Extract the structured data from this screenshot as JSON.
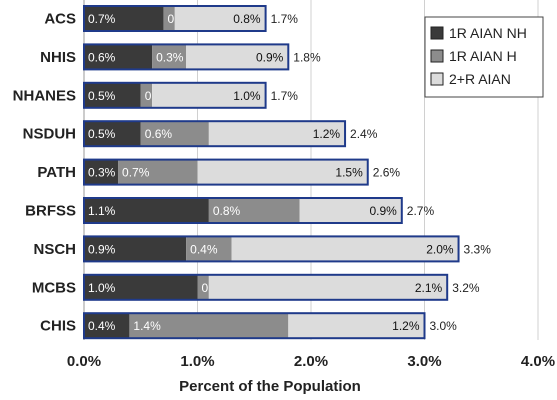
{
  "chart_data": {
    "type": "bar",
    "orientation": "horizontal",
    "stacked": true,
    "title": "",
    "xlabel": "Percent of the Population",
    "ylabel": "",
    "xlim": [
      0,
      4
    ],
    "xticks": [
      "0.0%",
      "1.0%",
      "2.0%",
      "3.0%",
      "4.0%"
    ],
    "grid": true,
    "legend_position": "top-right",
    "categories": [
      "ACS",
      "NHIS",
      "NHANES",
      "NSDUH",
      "PATH",
      "BRFSS",
      "NSCH",
      "MCBS",
      "CHIS"
    ],
    "series": [
      {
        "name": "1R AIAN NH",
        "color": "#3a3a3a",
        "text_color": "#ffffff",
        "values": [
          0.7,
          0.6,
          0.5,
          0.5,
          0.3,
          1.1,
          0.9,
          1.0,
          0.4
        ],
        "labels": [
          "0.7%",
          "0.6%",
          "0.5%",
          "0.5%",
          "0.3%",
          "1.1%",
          "0.9%",
          "1.0%",
          "0.4%"
        ]
      },
      {
        "name": "1R AIAN H",
        "color": "#8c8c8c",
        "text_color": "#ffffff",
        "values": [
          0.1,
          0.3,
          0.1,
          0.6,
          0.7,
          0.8,
          0.4,
          0.1,
          1.4
        ],
        "labels": [
          "0.1%",
          "0.3%",
          "0.1%",
          "0.6%",
          "0.7%",
          "0.8%",
          "0.4%",
          "0.1%",
          "1.4%"
        ]
      },
      {
        "name": "2+R AIAN",
        "color": "#dcdcdc",
        "text_color": "#111111",
        "values": [
          0.8,
          0.9,
          1.0,
          1.2,
          1.5,
          0.9,
          2.0,
          2.1,
          1.2
        ],
        "labels": [
          "0.8%",
          "0.9%",
          "1.0%",
          "1.2%",
          "1.5%",
          "0.9%",
          "2.0%",
          "2.1%",
          "1.2%"
        ]
      }
    ],
    "totals": [
      1.7,
      1.8,
      1.7,
      2.4,
      2.6,
      2.7,
      3.3,
      3.2,
      3.0
    ],
    "total_labels": [
      "1.7%",
      "1.8%",
      "1.7%",
      "2.4%",
      "2.6%",
      "2.7%",
      "3.3%",
      "3.2%",
      "3.0%"
    ],
    "bar_outline_color": "#1f3a8a"
  }
}
